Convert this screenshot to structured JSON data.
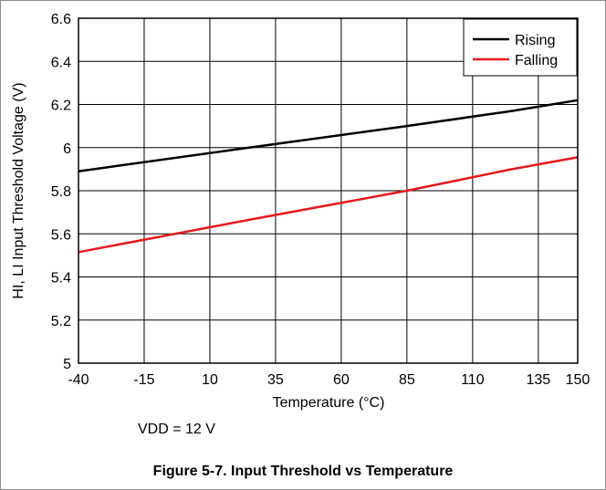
{
  "chart_data": {
    "type": "line",
    "xlabel": "Temperature (°C)",
    "ylabel": "HI, LI Input Threshold Voltage (V)",
    "xlim": [
      -40,
      150
    ],
    "ylim": [
      5,
      6.6
    ],
    "xticks": [
      -40,
      -15,
      10,
      35,
      60,
      85,
      110,
      135,
      150
    ],
    "xtick_labels": [
      "-40",
      "-15",
      "10",
      "35",
      "60",
      "85",
      "110",
      "135",
      "150"
    ],
    "yticks": [
      5,
      5.2,
      5.4,
      5.6,
      5.8,
      6,
      6.2,
      6.4,
      6.6
    ],
    "ytick_labels": [
      "5",
      "5.2",
      "5.4",
      "5.6",
      "5.8",
      "6",
      "6.2",
      "6.4",
      "6.6"
    ],
    "grid": true,
    "legend_position": "top-right",
    "series": [
      {
        "name": "Rising",
        "color": "#000000",
        "x": [
          -40,
          25,
          85,
          125,
          150
        ],
        "y": [
          5.89,
          6.0,
          6.1,
          6.17,
          6.22
        ]
      },
      {
        "name": "Falling",
        "color": "#e8191e",
        "x": [
          -40,
          25,
          85,
          125,
          150
        ],
        "y": [
          5.515,
          5.665,
          5.8,
          5.9,
          5.955
        ]
      }
    ]
  },
  "condition_text": "VDD = 12 V",
  "caption": "Figure 5-7. Input Threshold vs Temperature"
}
